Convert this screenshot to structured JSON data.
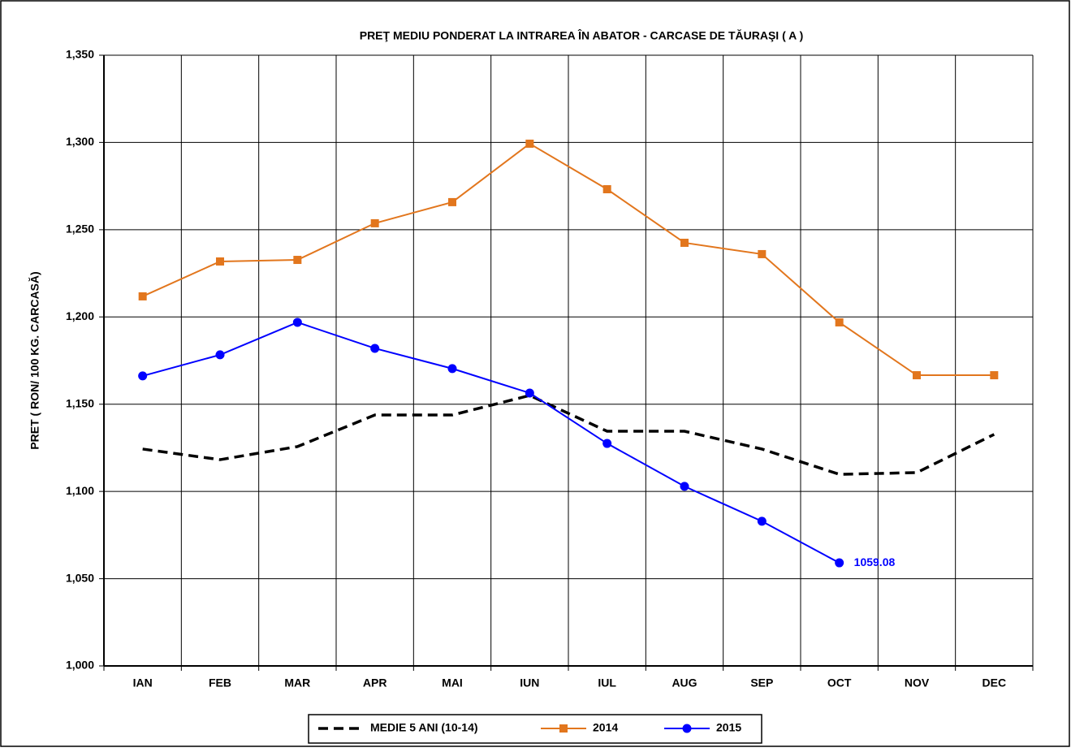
{
  "chart_data": {
    "type": "line",
    "title": "PREŢ MEDIU PONDERAT  LA INTRAREA ÎN ABATOR - CARCASE DE TĂURAŞI ( A )",
    "y_label": "PRET ( RON/ 100 KG. CARCASĂ)",
    "categories": [
      "IAN",
      "FEB",
      "MAR",
      "APR",
      "MAI",
      "IUN",
      "IUL",
      "AUG",
      "SEP",
      "OCT",
      "NOV",
      "DEC"
    ],
    "series": [
      {
        "name": "MEDIE 5 ANI (10-14)",
        "color": "#000000",
        "dashed": true,
        "values": [
          1124.3,
          1118.2,
          1125.7,
          1143.8,
          1143.8,
          1155,
          1134.5,
          1134.5,
          1124.3,
          1109.8,
          1110.8,
          1132.7
        ]
      },
      {
        "name": "2014",
        "color": "#e2761d",
        "marker": "square",
        "values": [
          1211.8,
          1231.8,
          1232.7,
          1253.7,
          1265.8,
          1299.3,
          1273.2,
          1242.5,
          1236,
          1196.9,
          1166.6,
          1166.6
        ]
      },
      {
        "name": "2015",
        "color": "#0000ff",
        "marker": "circle",
        "values": [
          1166.2,
          1178.3,
          1196.9,
          1182,
          1170.4,
          1156.4,
          1127.5,
          1102.9,
          1082.9,
          1059.08,
          null,
          null
        ],
        "value_labels": [
          null,
          null,
          null,
          null,
          null,
          null,
          null,
          null,
          null,
          "1059.08",
          null,
          null
        ]
      }
    ],
    "ylim": [
      1000,
      1350
    ],
    "yticks": [
      {
        "value": 1000,
        "label": "1,000"
      },
      {
        "value": 1050,
        "label": "1,050"
      },
      {
        "value": 1100,
        "label": "1,100"
      },
      {
        "value": 1150,
        "label": "1,150"
      },
      {
        "value": 1200,
        "label": "1,200"
      },
      {
        "value": 1250,
        "label": "1,250"
      },
      {
        "value": 1300,
        "label": "1,300"
      },
      {
        "value": 1350,
        "label": "1,350"
      }
    ],
    "grid": true,
    "legend": "bottom"
  }
}
